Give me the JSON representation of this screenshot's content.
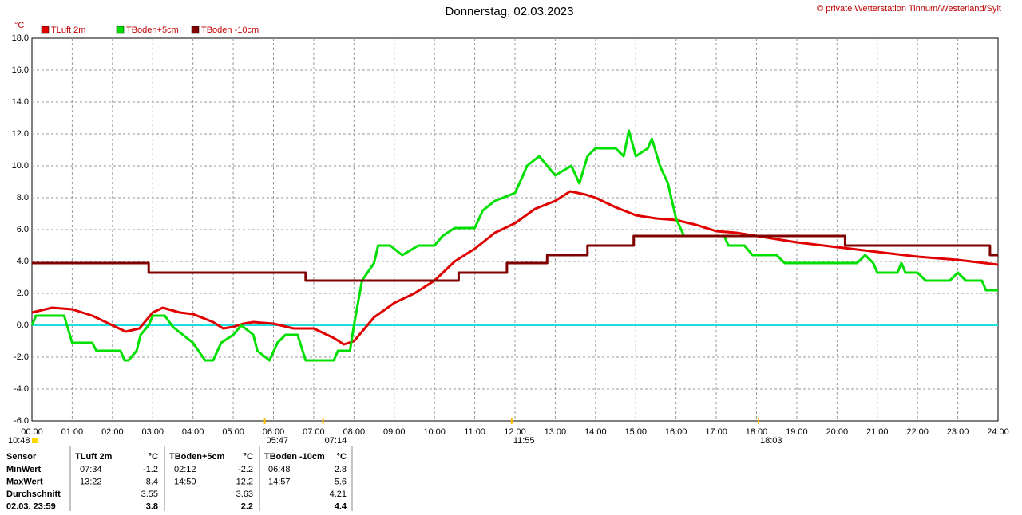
{
  "chart_data": {
    "type": "line",
    "title": "Donnerstag, 02.03.2023",
    "copyright": "© private Wetterstation Tinnum/Westerland/Sylt",
    "y_unit": "°C",
    "xlim": [
      0,
      24
    ],
    "xticks": [
      {
        "value": 0,
        "label": "00:00"
      },
      {
        "value": 1,
        "label": "01:00"
      },
      {
        "value": 2,
        "label": "02:00"
      },
      {
        "value": 3,
        "label": "03:00"
      },
      {
        "value": 4,
        "label": "04:00"
      },
      {
        "value": 5,
        "label": "05:00"
      },
      {
        "value": 6,
        "label": "06:00"
      },
      {
        "value": 7,
        "label": "07:00"
      },
      {
        "value": 8,
        "label": "08:00"
      },
      {
        "value": 9,
        "label": "09:00"
      },
      {
        "value": 10,
        "label": "10:00"
      },
      {
        "value": 11,
        "label": "11:00"
      },
      {
        "value": 12,
        "label": "12:00"
      },
      {
        "value": 13,
        "label": "13:00"
      },
      {
        "value": 14,
        "label": "14:00"
      },
      {
        "value": 15,
        "label": "15:00"
      },
      {
        "value": 16,
        "label": "16:00"
      },
      {
        "value": 17,
        "label": "17:00"
      },
      {
        "value": 18,
        "label": "18:00"
      },
      {
        "value": 19,
        "label": "19:00"
      },
      {
        "value": 20,
        "label": "20:00"
      },
      {
        "value": 21,
        "label": "21:00"
      },
      {
        "value": 22,
        "label": "22:00"
      },
      {
        "value": 23,
        "label": "23:00"
      },
      {
        "value": 24,
        "label": "24:00"
      }
    ],
    "ylim": [
      -6,
      18
    ],
    "yticks": [
      {
        "value": -6,
        "label": "-6.0"
      },
      {
        "value": -4,
        "label": "-4.0"
      },
      {
        "value": -2,
        "label": "-2.0"
      },
      {
        "value": 0,
        "label": "0.0"
      },
      {
        "value": 2,
        "label": "2.0"
      },
      {
        "value": 4,
        "label": "4.0"
      },
      {
        "value": 6,
        "label": "6.0"
      },
      {
        "value": 8,
        "label": "8.0"
      },
      {
        "value": 10,
        "label": "10.0"
      },
      {
        "value": 12,
        "label": "12.0"
      },
      {
        "value": 14,
        "label": "14.0"
      },
      {
        "value": 16,
        "label": "16.0"
      },
      {
        "value": 18,
        "label": "18.0"
      }
    ],
    "grid": true,
    "reference_line": {
      "value": 0,
      "color": "#22dddd"
    },
    "series": [
      {
        "name": "TLuft 2m",
        "color": "#e00000",
        "x": [
          0,
          0.5,
          1,
          1.5,
          2,
          2.33,
          2.67,
          3,
          3.25,
          3.67,
          4,
          4.5,
          4.75,
          5,
          5.25,
          5.5,
          6,
          6.5,
          7,
          7.5,
          7.75,
          8,
          8.5,
          9,
          9.5,
          10,
          10.5,
          11,
          11.5,
          12,
          12.5,
          13,
          13.37,
          13.75,
          14,
          14.5,
          15,
          15.5,
          16,
          16.5,
          17,
          17.5,
          18,
          19,
          20,
          21,
          22,
          23,
          24
        ],
        "values": [
          0.8,
          1.1,
          1.0,
          0.6,
          0.0,
          -0.4,
          -0.2,
          0.8,
          1.1,
          0.8,
          0.7,
          0.2,
          -0.2,
          -0.1,
          0.1,
          0.2,
          0.1,
          -0.2,
          -0.2,
          -0.8,
          -1.2,
          -1.0,
          0.5,
          1.4,
          2.0,
          2.8,
          4.0,
          4.8,
          5.8,
          6.4,
          7.3,
          7.8,
          8.4,
          8.2,
          8.0,
          7.4,
          6.9,
          6.7,
          6.6,
          6.3,
          5.9,
          5.8,
          5.6,
          5.2,
          4.9,
          4.6,
          4.3,
          4.1,
          3.8
        ]
      },
      {
        "name": "TBoden+5cm",
        "color": "#00e000",
        "x": [
          0,
          0.1,
          0.8,
          1.0,
          1.5,
          1.6,
          2.2,
          2.3,
          2.4,
          2.6,
          2.7,
          2.9,
          3.0,
          3.3,
          3.5,
          4.0,
          4.3,
          4.5,
          4.7,
          5.0,
          5.2,
          5.5,
          5.6,
          5.9,
          6.1,
          6.3,
          6.6,
          6.8,
          7.5,
          7.6,
          7.9,
          8.0,
          8.2,
          8.5,
          8.6,
          8.9,
          9.2,
          9.6,
          10.0,
          10.2,
          10.5,
          11.0,
          11.2,
          11.5,
          12.0,
          12.2,
          12.3,
          12.6,
          13.0,
          13.4,
          13.6,
          13.8,
          14.0,
          14.5,
          14.7,
          14.83,
          15.0,
          15.3,
          15.4,
          15.6,
          15.8,
          15.9,
          16.0,
          16.2,
          16.7,
          17.2,
          17.3,
          17.7,
          17.9,
          18.5,
          18.7,
          19.0,
          20.5,
          20.7,
          20.9,
          21.0,
          21.5,
          21.6,
          21.7,
          22.0,
          22.2,
          22.8,
          23.0,
          23.2,
          23.6,
          23.7,
          24
        ],
        "values": [
          0.0,
          0.6,
          0.6,
          -1.1,
          -1.1,
          -1.6,
          -1.6,
          -2.2,
          -2.2,
          -1.6,
          -0.6,
          0.0,
          0.6,
          0.6,
          -0.1,
          -1.1,
          -2.2,
          -2.2,
          -1.1,
          -0.6,
          0.0,
          -0.6,
          -1.6,
          -2.2,
          -1.1,
          -0.6,
          -0.6,
          -2.2,
          -2.2,
          -1.6,
          -1.6,
          0.0,
          2.8,
          3.9,
          5.0,
          5.0,
          4.4,
          5.0,
          5.0,
          5.6,
          6.1,
          6.1,
          7.2,
          7.8,
          8.3,
          9.4,
          10.0,
          10.6,
          9.4,
          10.0,
          8.9,
          10.6,
          11.1,
          11.1,
          10.6,
          12.2,
          10.6,
          11.1,
          11.7,
          10.0,
          8.9,
          7.8,
          6.7,
          5.6,
          null,
          5.6,
          5.0,
          5.0,
          4.4,
          4.4,
          3.9,
          3.9,
          3.9,
          4.4,
          3.9,
          3.3,
          3.3,
          3.9,
          3.3,
          3.3,
          2.8,
          2.8,
          3.3,
          2.8,
          2.8,
          2.2,
          2.2
        ]
      },
      {
        "name": "TBoden -10cm",
        "color": "#800000",
        "x": [
          0,
          2.9,
          2.9,
          6.8,
          6.8,
          10.6,
          10.6,
          11.8,
          11.8,
          12.8,
          12.8,
          13.8,
          13.8,
          14.95,
          14.95,
          20.2,
          20.2,
          23.8,
          23.8,
          24
        ],
        "values": [
          3.9,
          3.9,
          3.3,
          3.3,
          2.8,
          2.8,
          3.3,
          3.3,
          3.9,
          3.9,
          4.4,
          4.4,
          5.0,
          5.0,
          5.6,
          5.6,
          5.0,
          5.0,
          4.4,
          4.4
        ]
      }
    ],
    "moon_time": "10:48",
    "sun_marks": [
      {
        "label": "05:47",
        "x": 5.783
      },
      {
        "label": "07:14",
        "x": 7.233
      },
      {
        "label": "11:55",
        "x": 11.917
      },
      {
        "label": "18:03",
        "x": 18.05
      }
    ]
  },
  "table": {
    "header": [
      "Sensor",
      "TLuft 2m",
      "°C",
      "TBoden+5cm",
      "°C",
      "TBoden -10cm",
      "°C"
    ],
    "rows": [
      [
        "MinWert",
        "07:34",
        "-1.2",
        "02:12",
        "-2.2",
        "06:48",
        "2.8"
      ],
      [
        "MaxWert",
        "13:22",
        "8.4",
        "14:50",
        "12.2",
        "14:57",
        "5.6"
      ],
      [
        "Durchschnitt",
        null,
        "3.55",
        null,
        "3.63",
        null,
        "4.21"
      ],
      [
        "02.03. 23:59",
        null,
        "3.8",
        null,
        "2.2",
        null,
        "4.4"
      ]
    ]
  }
}
